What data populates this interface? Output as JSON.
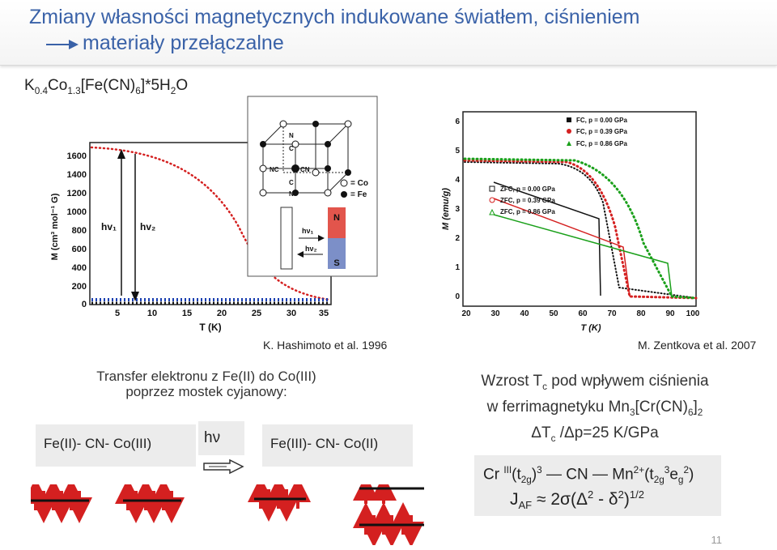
{
  "title": {
    "line1": "Zmiany własności magnetycznych indukowane światłem, ciśnieniem",
    "line2": "materiały przełączalne"
  },
  "formula": {
    "base": "K",
    "k_sub": "0.4",
    "co": "Co",
    "co_sub": "1.3",
    "fe": "[Fe(CN)",
    "cn_sub": "6",
    "tail": "]*5H",
    "h_sub": "2",
    "o": "O"
  },
  "left_figure": {
    "citation": "K. Hashimoto et al. 1996",
    "ylabel": "M (cm³ mol⁻¹ G)",
    "xlabel": "T (K)",
    "yticks": [
      "0",
      "200",
      "400",
      "600",
      "800",
      "1000",
      "1200",
      "1400",
      "1600"
    ],
    "xticks": [
      "5",
      "10",
      "15",
      "20",
      "25",
      "30",
      "35"
    ],
    "hv1": "hv₁",
    "hv2": "hv₂",
    "inset": {
      "legend_co": "= Co",
      "legend_fe": "= Fe",
      "hv1": "hν₁",
      "hv2": "hν₂",
      "north": "N",
      "south": "S",
      "n": "N",
      "c": "C",
      "nc": "NC",
      "cn": "CN",
      "n2": "N",
      "c2": "C",
      "n3": "N"
    }
  },
  "right_figure": {
    "citation": "M. Zentkova et al. 2007",
    "ylabel": "M (emu/g)",
    "xlabel": "T (K)",
    "yticks": [
      "0",
      "1",
      "2",
      "3",
      "4",
      "5",
      "6"
    ],
    "xticks": [
      "20",
      "30",
      "40",
      "50",
      "60",
      "70",
      "80",
      "90",
      "100"
    ],
    "legend_fc": [
      "FC, p = 0.00 GPa",
      "FC, p = 0.39 GPa",
      "FC, p = 0.86 GPa"
    ],
    "legend_zfc": [
      "ZFC, p = 0.00 GPa",
      "ZFC, p = 0.39 GPa",
      "ZFC, p = 0.86 GPa"
    ]
  },
  "transfer": {
    "line1": "Transfer  elektronu z Fe(II) do Co(III)",
    "line2": "poprzez mostek cyjanowy:",
    "left_state": "Fe(II)- CN- Co(III)",
    "hv": "hν",
    "right_state": "Fe(III)- CN- Co(II)"
  },
  "pressure": {
    "line1_a": "Wzrost  T",
    "line1_sub": "c",
    "line1_b": "  pod wpływem ciśnienia",
    "line2_a": "w ferrimagnetyku Mn",
    "line2_sub1": "3",
    "line2_b": "[Cr(CN)",
    "line2_sub2": "6",
    "line2_c": "]",
    "line2_sub3": "2",
    "line3_a": "ΔT",
    "line3_sub": "c",
    "line3_b": " /Δp=25 K/GPa"
  },
  "exchange": {
    "line1": {
      "a": "Cr ",
      "sup1": "III",
      "b": "(t",
      "sub1": "2g",
      "c": ")",
      "sup2": "3",
      "d": "  — CN — Mn",
      "sup3": "2+",
      "e": "(t",
      "sub2": "2g",
      "sup4": "3",
      "f": "e",
      "sub3": "g",
      "sup5": "2",
      "g": ")"
    },
    "line2": {
      "a": "J",
      "sub": "AF",
      "b": "  ≈  2σ(Δ",
      "sup1": "2",
      "c": " - δ",
      "sup2": "2",
      "d": ")",
      "sup3": "1/2"
    }
  },
  "page_number": "11",
  "colors": {
    "title": "#3a62a8",
    "red": "#d42020",
    "green": "#1aa01a"
  }
}
